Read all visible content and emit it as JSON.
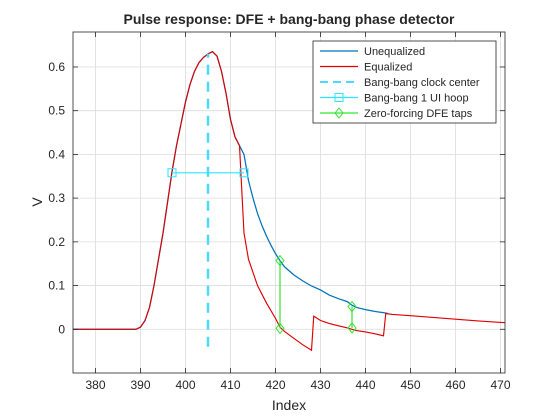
{
  "chart_data": {
    "type": "line",
    "title": "Pulse response: DFE + bang-bang phase detector",
    "xlabel": "Index",
    "ylabel": "V",
    "xlim": [
      375,
      471
    ],
    "ylim": [
      -0.1,
      0.68
    ],
    "xticks": [
      380,
      390,
      400,
      410,
      420,
      430,
      440,
      450,
      460,
      470
    ],
    "yticks": [
      0,
      0.1,
      0.2,
      0.3,
      0.4,
      0.5,
      0.6
    ],
    "xtick_labels": [
      "380",
      "390",
      "400",
      "410",
      "420",
      "430",
      "440",
      "450",
      "460",
      "470"
    ],
    "ytick_labels": [
      "0",
      "0.1",
      "0.2",
      "0.3",
      "0.4",
      "0.5",
      "0.6"
    ],
    "grid": true,
    "legend_position": "top-right",
    "series": [
      {
        "name": "Unequalized",
        "color": "#0072BD",
        "style": "solid",
        "x": [
          375,
          389,
          390,
          391,
          392,
          393,
          394,
          395,
          396,
          397,
          398,
          399,
          400,
          401,
          402,
          403,
          404,
          405,
          406,
          407,
          408,
          409,
          410,
          411,
          412,
          413,
          414,
          415,
          416,
          417,
          418,
          419,
          420,
          421,
          422,
          424,
          426,
          428,
          430,
          432,
          434,
          436,
          437,
          438,
          440,
          442,
          444,
          445
        ],
        "y": [
          0,
          0,
          0.005,
          0.02,
          0.05,
          0.1,
          0.16,
          0.22,
          0.29,
          0.36,
          0.42,
          0.47,
          0.52,
          0.56,
          0.59,
          0.61,
          0.622,
          0.63,
          0.635,
          0.625,
          0.59,
          0.54,
          0.48,
          0.44,
          0.42,
          0.4,
          0.34,
          0.3,
          0.265,
          0.237,
          0.213,
          0.192,
          0.173,
          0.157,
          0.143,
          0.125,
          0.111,
          0.099,
          0.09,
          0.078,
          0.07,
          0.063,
          0.055,
          0.05,
          0.045,
          0.041,
          0.038,
          0.036
        ]
      },
      {
        "name": "Equalized",
        "color": "#E00000",
        "style": "solid",
        "x": [
          375,
          389,
          390,
          391,
          392,
          393,
          394,
          395,
          396,
          397,
          398,
          399,
          400,
          401,
          402,
          403,
          404,
          405,
          406,
          407,
          408,
          409,
          410,
          411,
          412,
          413,
          414,
          416,
          418,
          420,
          421,
          422,
          424,
          426,
          428,
          428.5,
          430,
          432,
          434,
          436,
          437,
          438,
          440,
          442,
          444,
          444.5,
          446,
          450,
          455,
          460,
          465,
          471
        ],
        "y": [
          0,
          0,
          0.005,
          0.02,
          0.05,
          0.1,
          0.16,
          0.22,
          0.29,
          0.36,
          0.42,
          0.47,
          0.52,
          0.56,
          0.59,
          0.61,
          0.622,
          0.63,
          0.635,
          0.625,
          0.59,
          0.54,
          0.48,
          0.44,
          0.42,
          0.22,
          0.16,
          0.1,
          0.06,
          0.025,
          0.005,
          -0.005,
          -0.02,
          -0.035,
          -0.048,
          0.03,
          0.02,
          0.013,
          0.008,
          0.003,
          0,
          -0.003,
          -0.006,
          -0.01,
          -0.015,
          0.036,
          0.034,
          0.031,
          0.027,
          0.023,
          0.019,
          0.015
        ]
      }
    ],
    "bang_bang_clock_center": {
      "name": "Bang-bang clock center",
      "color": "#4DD8FF",
      "style": "dashed",
      "x": 405,
      "y": [
        -0.04,
        0.63
      ]
    },
    "bang_bang_hoop": {
      "name": "Bang-bang 1 UI hoop",
      "color": "#29E5FF",
      "marker": "square",
      "x": [
        397,
        413
      ],
      "y": 0.358
    },
    "zero_forcing_taps": {
      "name": "Zero-forcing DFE taps",
      "color": "#33E533",
      "marker": "diamond",
      "segments": [
        {
          "x": 421,
          "y_top": 0.157,
          "y_bottom": 0.002
        },
        {
          "x": 437,
          "y_top": 0.052,
          "y_bottom": 0.003
        }
      ]
    },
    "legend": [
      {
        "name": "Unequalized",
        "color": "#0072BD",
        "style": "solid",
        "marker": "none"
      },
      {
        "name": "Equalized",
        "color": "#E00000",
        "style": "solid",
        "marker": "none"
      },
      {
        "name": "Bang-bang clock center",
        "color": "#4DD8FF",
        "style": "dashed",
        "marker": "none"
      },
      {
        "name": "Bang-bang 1 UI hoop",
        "color": "#29E5FF",
        "style": "solid",
        "marker": "square"
      },
      {
        "name": "Zero-forcing DFE taps",
        "color": "#33E533",
        "style": "solid",
        "marker": "diamond"
      }
    ]
  }
}
